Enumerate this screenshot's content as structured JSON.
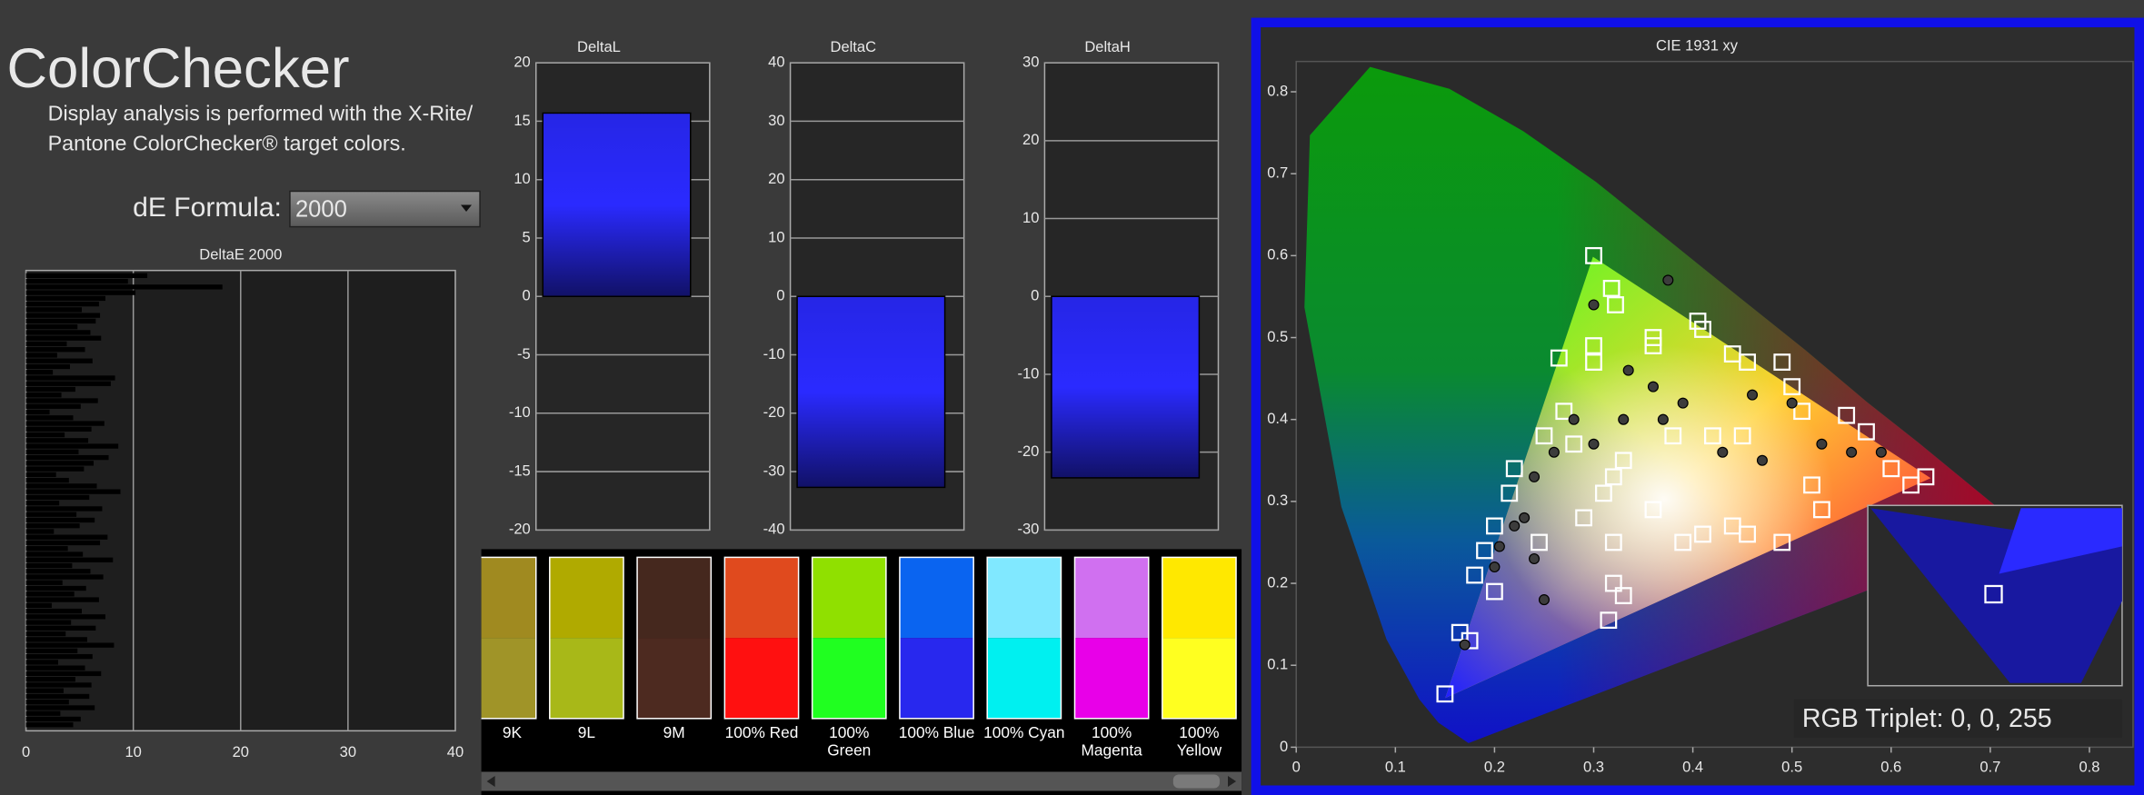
{
  "header": {
    "title": "ColorChecker",
    "description": [
      "Display analysis is performed with the X-Rite/",
      "Pantone ColorChecker® target colors."
    ]
  },
  "formula": {
    "label": "dE Formula:",
    "value": "2000"
  },
  "chart_data": [
    {
      "type": "bar",
      "orientation": "horizontal",
      "title": "DeltaE 2000",
      "color": "#000000",
      "grid": true,
      "xlim": [
        0,
        40
      ],
      "xticks": [
        0,
        10,
        20,
        30,
        40
      ],
      "values": [
        11.3,
        9.5,
        18.3,
        10.2,
        7.4,
        6.8,
        5.2,
        6.9,
        6.5,
        4.8,
        6.0,
        7.0,
        3.8,
        5.5,
        2.9,
        6.2,
        4.1,
        2.5,
        8.3,
        7.9,
        4.6,
        3.3,
        6.7,
        5.1,
        2.2,
        4.4,
        7.3,
        6.1,
        3.6,
        5.8,
        8.6,
        4.9,
        7.7,
        6.3,
        5.4,
        2.8,
        4.0,
        6.6,
        8.8,
        5.9,
        3.1,
        7.1,
        4.7,
        6.4,
        5.0,
        2.6,
        7.6,
        6.9,
        3.9,
        5.3,
        8.1,
        4.3,
        6.0,
        7.2,
        3.4,
        5.6,
        4.5,
        6.8,
        2.4,
        5.2,
        7.4,
        4.2,
        6.5,
        3.7,
        5.7,
        8.2,
        4.8,
        6.2,
        3.0,
        5.5,
        7.0,
        4.6,
        6.1,
        3.5,
        5.9,
        4.0,
        6.4,
        3.2,
        5.1,
        4.4
      ]
    },
    {
      "type": "bar",
      "title": "DeltaL",
      "color": "#2a2aff",
      "grid": true,
      "ylim": [
        -20,
        20
      ],
      "yticks": [
        -20,
        -15,
        -10,
        -5,
        0,
        5,
        10,
        15,
        20
      ],
      "values": [
        15.7
      ]
    },
    {
      "type": "bar",
      "title": "DeltaC",
      "color": "#2a2aff",
      "grid": true,
      "ylim": [
        -40,
        40
      ],
      "yticks": [
        -40,
        -30,
        -20,
        -10,
        0,
        10,
        20,
        30,
        40
      ],
      "values": [
        -32.7
      ]
    },
    {
      "type": "bar",
      "title": "DeltaH",
      "color": "#2a2aff",
      "grid": true,
      "ylim": [
        -30,
        30
      ],
      "yticks": [
        -30,
        -20,
        -10,
        0,
        10,
        20,
        30
      ],
      "values": [
        -23.3
      ]
    },
    {
      "type": "scatter",
      "title": "CIE 1931 xy",
      "readout": "RGB Triplet: 0, 0, 255",
      "xlim": [
        0,
        0.844
      ],
      "ylim": [
        0,
        0.837
      ],
      "xticks": [
        0,
        0.1,
        0.2,
        0.3,
        0.4,
        0.5,
        0.6,
        0.7,
        0.8
      ],
      "yticks": [
        0,
        0.1,
        0.2,
        0.3,
        0.4,
        0.5,
        0.6,
        0.7,
        0.8
      ],
      "series": [
        {
          "marker": "square",
          "color": "#ffffff",
          "x": [
            0.3,
            0.318,
            0.322,
            0.3,
            0.3,
            0.265,
            0.36,
            0.36,
            0.405,
            0.41,
            0.44,
            0.455,
            0.49,
            0.5,
            0.51,
            0.555,
            0.575,
            0.45,
            0.42,
            0.38,
            0.33,
            0.32,
            0.28,
            0.27,
            0.25,
            0.22,
            0.215,
            0.2,
            0.19,
            0.18,
            0.2,
            0.165,
            0.175,
            0.15,
            0.245,
            0.29,
            0.31,
            0.36,
            0.39,
            0.41,
            0.44,
            0.455,
            0.49,
            0.52,
            0.53,
            0.6,
            0.62,
            0.635,
            0.32,
            0.32,
            0.33,
            0.315
          ],
          "y": [
            0.6,
            0.56,
            0.54,
            0.49,
            0.47,
            0.475,
            0.49,
            0.5,
            0.52,
            0.51,
            0.48,
            0.47,
            0.47,
            0.44,
            0.41,
            0.405,
            0.385,
            0.38,
            0.38,
            0.38,
            0.35,
            0.33,
            0.37,
            0.41,
            0.38,
            0.34,
            0.31,
            0.27,
            0.24,
            0.21,
            0.19,
            0.14,
            0.13,
            0.065,
            0.25,
            0.28,
            0.31,
            0.29,
            0.25,
            0.26,
            0.27,
            0.26,
            0.25,
            0.32,
            0.29,
            0.34,
            0.32,
            0.33,
            0.25,
            0.2,
            0.185,
            0.155
          ]
        },
        {
          "marker": "circle",
          "color": "#3c3c3c",
          "x": [
            0.375,
            0.3,
            0.335,
            0.36,
            0.39,
            0.37,
            0.33,
            0.28,
            0.26,
            0.24,
            0.23,
            0.22,
            0.205,
            0.2,
            0.24,
            0.3,
            0.43,
            0.47,
            0.53,
            0.56,
            0.59,
            0.25,
            0.17,
            0.46,
            0.5
          ],
          "y": [
            0.57,
            0.54,
            0.46,
            0.44,
            0.42,
            0.4,
            0.4,
            0.4,
            0.36,
            0.33,
            0.28,
            0.27,
            0.245,
            0.22,
            0.23,
            0.37,
            0.36,
            0.35,
            0.37,
            0.36,
            0.36,
            0.18,
            0.125,
            0.43,
            0.42
          ]
        }
      ]
    }
  ],
  "swatches": [
    {
      "label": "9K",
      "target": "#a08a20",
      "measured": "#a09428"
    },
    {
      "label": "9L",
      "target": "#b0aa00",
      "measured": "#a8b818"
    },
    {
      "label": "9M",
      "target": "#45281e",
      "measured": "#4d2a20"
    },
    {
      "label": "100% Red",
      "target": "#e04a1e",
      "measured": "#ff1010"
    },
    {
      "label": "100% Green",
      "target": "#90e000",
      "measured": "#20ff20"
    },
    {
      "label": "100% Blue",
      "target": "#0a64f0",
      "measured": "#2828ee"
    },
    {
      "label": "100% Cyan",
      "target": "#80e8ff",
      "measured": "#00f0f0"
    },
    {
      "label": "100% Magenta",
      "target": "#d070f0",
      "measured": "#e800e8"
    },
    {
      "label": "100% Yellow",
      "target": "#ffe800",
      "measured": "#ffff20"
    }
  ]
}
